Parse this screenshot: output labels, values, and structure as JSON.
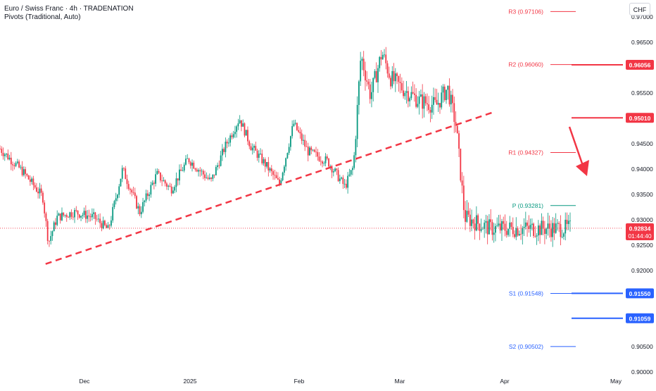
{
  "header": {
    "title": "Euro / Swiss Franc · 4h · TRADENATION",
    "indicator": "Pivots (Traditional, Auto)",
    "currency": "CHF"
  },
  "chart_data": {
    "type": "candlestick",
    "symbol": "EURCHF",
    "interval": "4h",
    "y_ticks": [
      "0.97000",
      "0.96500",
      "0.95500",
      "0.94500",
      "0.94000",
      "0.93500",
      "0.93000",
      "0.92500",
      "0.92000",
      "0.90500",
      "0.90000"
    ],
    "ylim": [
      0.9,
      0.972
    ],
    "x_ticks": [
      "Dec",
      "2025",
      "Feb",
      "Mar",
      "Apr",
      "May"
    ],
    "price_path": [
      {
        "t": 0,
        "p": 0.944
      },
      {
        "t": 0.04,
        "p": 0.9395
      },
      {
        "t": 0.075,
        "p": 0.9345
      },
      {
        "t": 0.085,
        "p": 0.9255
      },
      {
        "t": 0.1,
        "p": 0.9305
      },
      {
        "t": 0.13,
        "p": 0.9315
      },
      {
        "t": 0.165,
        "p": 0.9305
      },
      {
        "t": 0.19,
        "p": 0.928
      },
      {
        "t": 0.215,
        "p": 0.94
      },
      {
        "t": 0.245,
        "p": 0.9315
      },
      {
        "t": 0.275,
        "p": 0.939
      },
      {
        "t": 0.3,
        "p": 0.936
      },
      {
        "t": 0.33,
        "p": 0.942
      },
      {
        "t": 0.37,
        "p": 0.9375
      },
      {
        "t": 0.395,
        "p": 0.9445
      },
      {
        "t": 0.42,
        "p": 0.95
      },
      {
        "t": 0.44,
        "p": 0.9445
      },
      {
        "t": 0.465,
        "p": 0.941
      },
      {
        "t": 0.49,
        "p": 0.937
      },
      {
        "t": 0.515,
        "p": 0.949
      },
      {
        "t": 0.54,
        "p": 0.9435
      },
      {
        "t": 0.575,
        "p": 0.9415
      },
      {
        "t": 0.605,
        "p": 0.9365
      },
      {
        "t": 0.62,
        "p": 0.9405
      },
      {
        "t": 0.633,
        "p": 0.9625
      },
      {
        "t": 0.65,
        "p": 0.9545
      },
      {
        "t": 0.67,
        "p": 0.963
      },
      {
        "t": 0.685,
        "p": 0.958
      },
      {
        "t": 0.705,
        "p": 0.956
      },
      {
        "t": 0.735,
        "p": 0.9535
      },
      {
        "t": 0.765,
        "p": 0.9525
      },
      {
        "t": 0.785,
        "p": 0.956
      },
      {
        "t": 0.8,
        "p": 0.9485
      },
      {
        "t": 0.815,
        "p": 0.9305
      },
      {
        "t": 0.835,
        "p": 0.9295
      },
      {
        "t": 0.86,
        "p": 0.9283
      }
    ],
    "trendline": {
      "start": {
        "t": 0.08,
        "p": 0.9213
      },
      "end": {
        "t": 0.865,
        "p": 0.9512
      },
      "color": "#f23645",
      "style": "dashed"
    },
    "current_price": {
      "value": "0.92834",
      "countdown": "01:44:40",
      "color": "#f23645"
    },
    "pivots": [
      {
        "name": "R3",
        "label": "R3 (0.97106)",
        "value": 0.97106,
        "color": "#f23645"
      },
      {
        "name": "R2",
        "label": "R2 (0.96060)",
        "value": 0.9606,
        "color": "#f23645"
      },
      {
        "name": "R1",
        "label": "R1 (0.94327)",
        "value": 0.94327,
        "color": "#f23645"
      },
      {
        "name": "P",
        "label": "P (0.93281)",
        "value": 0.93281,
        "color": "#089981"
      },
      {
        "name": "S1",
        "label": "S1 (0.91548)",
        "value": 0.91548,
        "color": "#2962ff"
      },
      {
        "name": "S2",
        "label": "S2 (0.90502)",
        "value": 0.90502,
        "color": "#2962ff"
      }
    ],
    "horizontal_levels": [
      {
        "value": 0.96056,
        "label": "0.96056",
        "color": "#f23645"
      },
      {
        "value": 0.9501,
        "label": "0.95010",
        "color": "#f23645"
      },
      {
        "value": 0.9155,
        "label": "0.91550",
        "color": "#2962ff"
      },
      {
        "value": 0.91059,
        "label": "0.91059",
        "color": "#2962ff"
      }
    ],
    "colors": {
      "up": "#089981",
      "down": "#f23645",
      "wick": "#131722"
    }
  }
}
